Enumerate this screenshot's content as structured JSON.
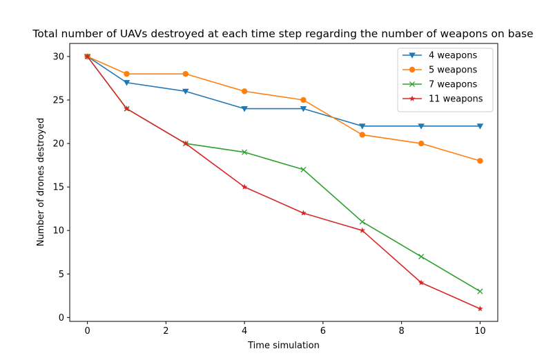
{
  "chart_data": {
    "type": "line",
    "title": "Total number of UAVs destroyed at each time step regarding the number of weapons on base",
    "xlabel": "Time simulation",
    "ylabel": "Number of drones destroyed",
    "xlim": [
      -0.45,
      10.45
    ],
    "ylim": [
      -0.45,
      31.5
    ],
    "xticks": [
      0,
      2,
      4,
      6,
      8,
      10
    ],
    "yticks": [
      0,
      5,
      10,
      15,
      20,
      25,
      30
    ],
    "grid": false,
    "legend": "top-right",
    "x": [
      0,
      1,
      2.5,
      4,
      5.5,
      7,
      8.5,
      10
    ],
    "series": [
      {
        "name": "4 weapons",
        "values": [
          30,
          27,
          26,
          24,
          24,
          22,
          22,
          22
        ],
        "color": "#1f77b4",
        "marker": "triangle-down"
      },
      {
        "name": "5 weapons",
        "values": [
          30,
          28,
          28,
          26,
          25,
          21,
          20,
          18
        ],
        "color": "#ff7f0e",
        "marker": "circle"
      },
      {
        "name": "7 weapons",
        "values": [
          30,
          24,
          20,
          19,
          17,
          11,
          7,
          3
        ],
        "color": "#2ca02c",
        "marker": "x"
      },
      {
        "name": "11 weapons",
        "values": [
          30,
          24,
          20,
          15,
          12,
          10,
          4,
          1
        ],
        "color": "#d62728",
        "marker": "star"
      }
    ]
  }
}
